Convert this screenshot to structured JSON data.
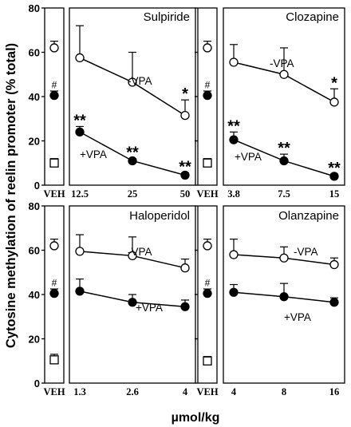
{
  "figure": {
    "ylabel": "Cytosine methylation of reelin promoter (% total)",
    "xlabel": "µmol/kg",
    "control_label": "VEH",
    "hash_marker": "#",
    "ytick_labels": [
      "0",
      "20",
      "40",
      "60",
      "80"
    ],
    "colors": {
      "ink": "#000000",
      "open_fill": "#ffffff"
    }
  },
  "chart_data": [
    {
      "type": "line",
      "title": "Sulpiride",
      "doses": [
        "12.5",
        "25",
        "50"
      ],
      "ylim": [
        0,
        80
      ],
      "veh": {
        "circle_open": 62,
        "circle_open_err": 3,
        "circle_filled": 40.5,
        "circle_filled_err": 2,
        "square_open": 10,
        "square_open_err": 2
      },
      "series": [
        {
          "name": "-VPA",
          "marker": "open-circle",
          "values": [
            57.5,
            46.5,
            31.5
          ],
          "errors": [
            14.5,
            13.5,
            7
          ]
        },
        {
          "name": "+VPA",
          "marker": "filled-circle",
          "values": [
            24,
            11,
            4.5
          ],
          "errors": [
            2.5,
            1,
            1
          ]
        }
      ],
      "significance": [
        {
          "series": "+VPA",
          "index": 0,
          "label": "**"
        },
        {
          "series": "+VPA",
          "index": 1,
          "label": "**"
        },
        {
          "series": "+VPA",
          "index": 2,
          "label": "**"
        },
        {
          "series": "-VPA",
          "index": 2,
          "label": "*"
        }
      ]
    },
    {
      "type": "line",
      "title": "Clozapine",
      "doses": [
        "3.8",
        "7.5",
        "15"
      ],
      "ylim": [
        0,
        80
      ],
      "veh": {
        "circle_open": 62,
        "circle_open_err": 3,
        "circle_filled": 40.5,
        "circle_filled_err": 2,
        "square_open": 10,
        "square_open_err": 2
      },
      "series": [
        {
          "name": "-VPA",
          "marker": "open-circle",
          "values": [
            55.5,
            50,
            37.5
          ],
          "errors": [
            8,
            12,
            6
          ]
        },
        {
          "name": "+VPA",
          "marker": "filled-circle",
          "values": [
            20.5,
            11,
            4
          ],
          "errors": [
            3.5,
            3,
            1
          ]
        }
      ],
      "significance": [
        {
          "series": "+VPA",
          "index": 0,
          "label": "**"
        },
        {
          "series": "+VPA",
          "index": 1,
          "label": "**"
        },
        {
          "series": "+VPA",
          "index": 2,
          "label": "**"
        },
        {
          "series": "-VPA",
          "index": 2,
          "label": "*"
        }
      ]
    },
    {
      "type": "line",
      "title": "Haloperidol",
      "doses": [
        "1.3",
        "2.6",
        "4"
      ],
      "ylim": [
        0,
        80
      ],
      "veh": {
        "circle_open": 62,
        "circle_open_err": 3,
        "circle_filled": 40.5,
        "circle_filled_err": 2,
        "square_open": 10.5,
        "square_open_err": 2.5
      },
      "series": [
        {
          "name": "-VPA",
          "marker": "open-circle",
          "values": [
            59.5,
            57.5,
            52
          ],
          "errors": [
            7.5,
            8.5,
            4
          ]
        },
        {
          "name": "+VPA",
          "marker": "filled-circle",
          "values": [
            41.5,
            36.5,
            34.5
          ],
          "errors": [
            5.5,
            3.5,
            3
          ]
        }
      ],
      "significance": []
    },
    {
      "type": "line",
      "title": "Olanzapine",
      "doses": [
        "4",
        "8",
        "16"
      ],
      "ylim": [
        0,
        80
      ],
      "veh": {
        "circle_open": 62,
        "circle_open_err": 3,
        "circle_filled": 40.5,
        "circle_filled_err": 2,
        "square_open": 10,
        "square_open_err": 2
      },
      "series": [
        {
          "name": "-VPA",
          "marker": "open-circle",
          "values": [
            58,
            56.5,
            53.5
          ],
          "errors": [
            7,
            5,
            3
          ]
        },
        {
          "name": "+VPA",
          "marker": "filled-circle",
          "values": [
            41,
            39,
            36.5
          ],
          "errors": [
            3.5,
            6,
            2
          ]
        }
      ],
      "significance": []
    }
  ]
}
